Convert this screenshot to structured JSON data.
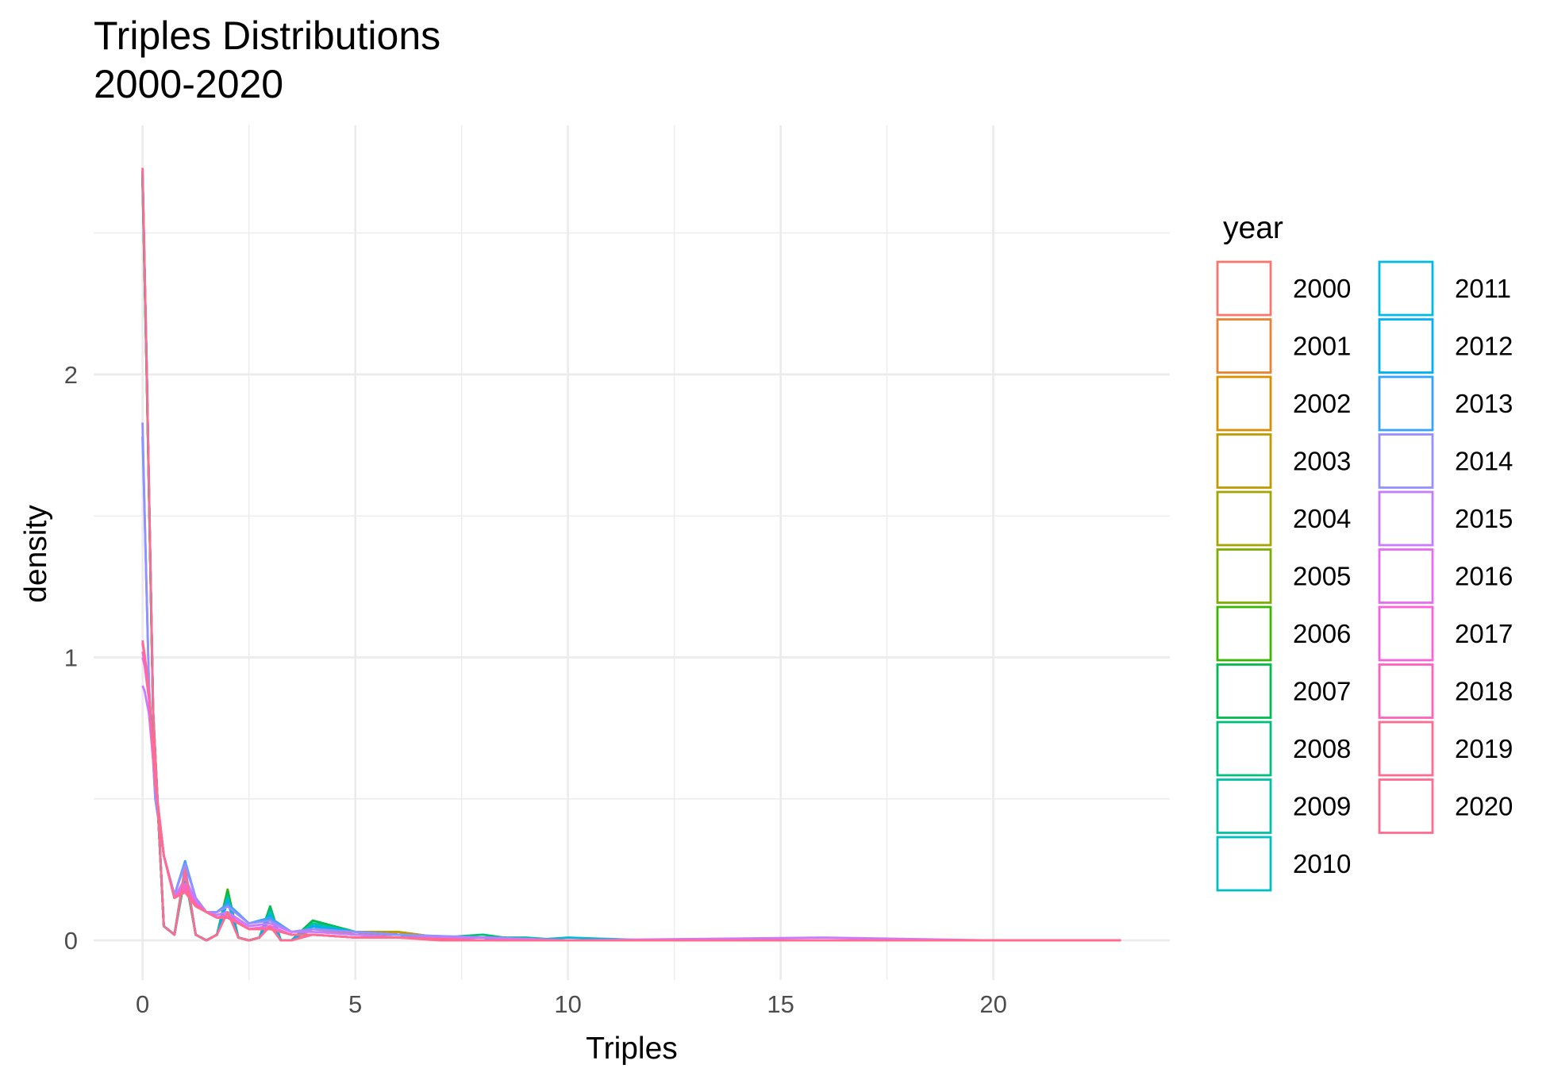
{
  "chart_data": {
    "type": "line",
    "subtype": "density",
    "title": "Triples Distributions",
    "subtitle": "2000-2020",
    "xlabel": "Triples",
    "ylabel": "density",
    "xlim": [
      -1.15,
      24.15
    ],
    "ylim": [
      -0.14,
      2.88
    ],
    "x_ticks": [
      0,
      5,
      10,
      15,
      20
    ],
    "y_ticks": [
      0,
      1,
      2
    ],
    "grid": true,
    "legend_title": "year",
    "legend_position": "right",
    "series": [
      {
        "name": "2000",
        "color": "#F8766D",
        "x": [
          0,
          0.1,
          0.25,
          0.5,
          0.75,
          1,
          1.25,
          1.5,
          1.75,
          2,
          2.25,
          2.5,
          2.75,
          3,
          3.25,
          3.5,
          4,
          5,
          6,
          7,
          8,
          9,
          10,
          12,
          15,
          20,
          23
        ],
        "y": [
          2.7,
          2.0,
          0.8,
          0.05,
          0.02,
          0.24,
          0.02,
          0.0,
          0.02,
          0.14,
          0.01,
          0.0,
          0.01,
          0.08,
          0.0,
          0.0,
          0.04,
          0.02,
          0.02,
          0.01,
          0.01,
          0.0,
          0.0,
          0.0,
          0.0,
          0.0,
          0.0
        ]
      },
      {
        "name": "2001",
        "color": "#EA8331",
        "x": [
          0,
          0.1,
          0.25,
          0.5,
          0.75,
          1,
          1.25,
          1.5,
          1.75,
          2,
          2.25,
          2.5,
          2.75,
          3,
          3.25,
          3.5,
          4,
          5,
          6,
          7,
          8,
          9,
          10,
          12,
          15,
          20,
          23
        ],
        "y": [
          2.72,
          2.0,
          0.8,
          0.05,
          0.02,
          0.25,
          0.02,
          0.0,
          0.02,
          0.15,
          0.01,
          0.0,
          0.01,
          0.09,
          0.0,
          0.0,
          0.05,
          0.02,
          0.03,
          0.01,
          0.01,
          0.0,
          0.0,
          0.0,
          0.0,
          0.0,
          0.0
        ]
      },
      {
        "name": "2002",
        "color": "#D89000",
        "x": [
          0,
          0.1,
          0.25,
          0.5,
          0.75,
          1,
          1.25,
          1.5,
          1.75,
          2,
          2.25,
          2.5,
          2.75,
          3,
          3.25,
          3.5,
          4,
          5,
          6,
          7,
          8,
          9,
          10,
          12,
          15,
          20,
          23
        ],
        "y": [
          2.7,
          1.98,
          0.8,
          0.05,
          0.02,
          0.24,
          0.02,
          0.0,
          0.02,
          0.16,
          0.01,
          0.0,
          0.01,
          0.1,
          0.0,
          0.0,
          0.05,
          0.03,
          0.03,
          0.01,
          0.01,
          0.0,
          0.0,
          0.0,
          0.0,
          0.0,
          0.0
        ]
      },
      {
        "name": "2003",
        "color": "#C09B00",
        "x": [
          0,
          0.1,
          0.25,
          0.5,
          0.75,
          1,
          1.25,
          1.5,
          1.75,
          2,
          2.25,
          2.5,
          2.75,
          3,
          3.25,
          3.5,
          4,
          5,
          6,
          7,
          8,
          9,
          10,
          12,
          15,
          20,
          23
        ],
        "y": [
          2.71,
          1.99,
          0.8,
          0.05,
          0.02,
          0.25,
          0.02,
          0.0,
          0.02,
          0.15,
          0.01,
          0.0,
          0.01,
          0.09,
          0.0,
          0.0,
          0.05,
          0.03,
          0.03,
          0.01,
          0.01,
          0.0,
          0.0,
          0.0,
          0.0,
          0.0,
          0.0
        ]
      },
      {
        "name": "2004",
        "color": "#A3A500",
        "x": [
          0,
          0.1,
          0.25,
          0.5,
          0.75,
          1,
          1.25,
          1.5,
          1.75,
          2,
          2.25,
          2.5,
          2.75,
          3,
          3.25,
          3.5,
          4,
          5,
          6,
          7,
          8,
          9,
          10,
          12,
          15,
          20,
          23
        ],
        "y": [
          2.7,
          2.0,
          0.8,
          0.05,
          0.02,
          0.24,
          0.02,
          0.0,
          0.02,
          0.16,
          0.01,
          0.0,
          0.01,
          0.1,
          0.0,
          0.0,
          0.05,
          0.03,
          0.02,
          0.01,
          0.01,
          0.0,
          0.0,
          0.0,
          0.0,
          0.0,
          0.0
        ]
      },
      {
        "name": "2005",
        "color": "#7CAE00",
        "x": [
          0,
          0.1,
          0.25,
          0.5,
          0.75,
          1,
          1.25,
          1.5,
          1.75,
          2,
          2.25,
          2.5,
          2.75,
          3,
          3.25,
          3.5,
          4,
          5,
          6,
          7,
          8,
          9,
          10,
          12,
          15,
          20,
          23
        ],
        "y": [
          2.69,
          1.98,
          0.79,
          0.05,
          0.02,
          0.23,
          0.02,
          0.0,
          0.02,
          0.17,
          0.01,
          0.0,
          0.01,
          0.11,
          0.0,
          0.0,
          0.06,
          0.03,
          0.02,
          0.01,
          0.01,
          0.0,
          0.0,
          0.0,
          0.0,
          0.0,
          0.0
        ]
      },
      {
        "name": "2006",
        "color": "#39B600",
        "x": [
          0,
          0.1,
          0.25,
          0.5,
          0.75,
          1,
          1.25,
          1.5,
          1.75,
          2,
          2.25,
          2.5,
          2.75,
          3,
          3.25,
          3.5,
          4,
          5,
          6,
          7,
          8,
          9,
          10,
          12,
          15,
          20,
          23
        ],
        "y": [
          2.68,
          1.97,
          0.79,
          0.05,
          0.02,
          0.23,
          0.02,
          0.0,
          0.02,
          0.18,
          0.01,
          0.0,
          0.01,
          0.12,
          0.0,
          0.0,
          0.07,
          0.03,
          0.02,
          0.01,
          0.01,
          0.0,
          0.0,
          0.0,
          0.0,
          0.0,
          0.0
        ]
      },
      {
        "name": "2007",
        "color": "#00BB4E",
        "x": [
          0,
          0.1,
          0.25,
          0.5,
          0.75,
          1,
          1.25,
          1.5,
          1.75,
          2,
          2.25,
          2.5,
          2.75,
          3,
          3.25,
          3.5,
          4,
          5,
          6,
          7,
          8,
          9,
          10,
          12,
          15,
          20,
          23
        ],
        "y": [
          2.69,
          1.98,
          0.79,
          0.05,
          0.02,
          0.23,
          0.02,
          0.0,
          0.02,
          0.17,
          0.01,
          0.0,
          0.01,
          0.12,
          0.0,
          0.0,
          0.07,
          0.03,
          0.02,
          0.01,
          0.01,
          0.0,
          0.0,
          0.0,
          0.0,
          0.0,
          0.0
        ]
      },
      {
        "name": "2008",
        "color": "#00BF7D",
        "x": [
          0,
          0.1,
          0.25,
          0.5,
          0.75,
          1,
          1.25,
          1.5,
          1.75,
          2,
          2.25,
          2.5,
          2.75,
          3,
          3.25,
          3.5,
          4,
          5,
          6,
          7,
          8,
          9,
          10,
          12,
          15,
          20,
          23
        ],
        "y": [
          2.7,
          1.99,
          0.8,
          0.05,
          0.02,
          0.24,
          0.02,
          0.0,
          0.02,
          0.16,
          0.01,
          0.0,
          0.01,
          0.11,
          0.0,
          0.0,
          0.06,
          0.03,
          0.02,
          0.01,
          0.02,
          0.0,
          0.0,
          0.0,
          0.0,
          0.0,
          0.0
        ]
      },
      {
        "name": "2009",
        "color": "#00C1A3",
        "x": [
          0,
          0.1,
          0.25,
          0.5,
          0.75,
          1,
          1.25,
          1.5,
          1.75,
          2,
          2.25,
          2.5,
          2.75,
          3,
          3.25,
          3.5,
          4,
          5,
          6,
          7,
          8,
          9,
          10,
          12,
          15,
          20,
          23
        ],
        "y": [
          2.71,
          2.0,
          0.8,
          0.05,
          0.02,
          0.24,
          0.02,
          0.0,
          0.02,
          0.15,
          0.01,
          0.0,
          0.01,
          0.1,
          0.0,
          0.0,
          0.06,
          0.03,
          0.02,
          0.01,
          0.01,
          0.01,
          0.0,
          0.0,
          0.0,
          0.0,
          0.0
        ]
      },
      {
        "name": "2010",
        "color": "#00BFC4",
        "x": [
          0,
          0.1,
          0.25,
          0.5,
          0.75,
          1,
          1.25,
          1.5,
          1.75,
          2,
          2.25,
          2.5,
          2.75,
          3,
          3.25,
          3.5,
          4,
          5,
          6,
          7,
          8,
          9,
          10,
          12,
          15,
          20,
          23
        ],
        "y": [
          2.7,
          1.99,
          0.8,
          0.05,
          0.02,
          0.25,
          0.02,
          0.0,
          0.02,
          0.15,
          0.01,
          0.0,
          0.01,
          0.1,
          0.0,
          0.0,
          0.05,
          0.03,
          0.02,
          0.01,
          0.01,
          0.0,
          0.0,
          0.0,
          0.0,
          0.0,
          0.0
        ]
      },
      {
        "name": "2011",
        "color": "#00BAE0",
        "x": [
          0,
          0.1,
          0.25,
          0.5,
          0.75,
          1,
          1.25,
          1.5,
          1.75,
          2,
          2.25,
          2.5,
          2.75,
          3,
          3.25,
          3.5,
          4,
          5,
          6,
          7,
          8,
          9,
          10,
          12,
          15,
          20,
          23
        ],
        "y": [
          2.71,
          2.0,
          0.81,
          0.05,
          0.02,
          0.25,
          0.02,
          0.0,
          0.02,
          0.14,
          0.01,
          0.0,
          0.01,
          0.09,
          0.0,
          0.0,
          0.05,
          0.03,
          0.02,
          0.01,
          0.01,
          0.0,
          0.01,
          0.0,
          0.0,
          0.0,
          0.0
        ]
      },
      {
        "name": "2012",
        "color": "#00B0F6",
        "x": [
          0,
          0.1,
          0.25,
          0.5,
          0.75,
          1,
          1.25,
          1.5,
          1.75,
          2,
          2.25,
          2.5,
          2.75,
          3,
          3.25,
          3.5,
          4,
          5,
          6,
          7,
          8,
          9,
          10,
          12,
          15,
          20,
          23
        ],
        "y": [
          2.72,
          2.01,
          0.81,
          0.05,
          0.02,
          0.26,
          0.02,
          0.0,
          0.02,
          0.14,
          0.01,
          0.0,
          0.01,
          0.09,
          0.0,
          0.0,
          0.05,
          0.03,
          0.02,
          0.01,
          0.01,
          0.0,
          0.0,
          0.0,
          0.0,
          0.0,
          0.0
        ]
      },
      {
        "name": "2013",
        "color": "#35A2FF",
        "x": [
          0,
          0.05,
          0.15,
          0.3,
          0.5,
          0.75,
          1,
          1.25,
          1.5,
          1.75,
          2,
          2.5,
          3,
          3.5,
          4,
          5,
          6,
          8,
          10,
          16,
          20,
          23
        ],
        "y": [
          1.78,
          1.5,
          0.9,
          0.5,
          0.3,
          0.16,
          0.28,
          0.15,
          0.1,
          0.1,
          0.13,
          0.06,
          0.08,
          0.03,
          0.04,
          0.03,
          0.02,
          0.01,
          0.0,
          0.0,
          0.0,
          0.0
        ]
      },
      {
        "name": "2014",
        "color": "#9590FF",
        "x": [
          0,
          0.05,
          0.15,
          0.3,
          0.5,
          0.75,
          1,
          1.25,
          1.5,
          1.75,
          2,
          2.5,
          3,
          3.5,
          4,
          5,
          6,
          8,
          10,
          16,
          20,
          23
        ],
        "y": [
          1.83,
          1.5,
          0.9,
          0.5,
          0.3,
          0.16,
          0.27,
          0.15,
          0.1,
          0.1,
          0.12,
          0.06,
          0.07,
          0.03,
          0.04,
          0.03,
          0.02,
          0.01,
          0.0,
          0.0,
          0.0,
          0.0
        ]
      },
      {
        "name": "2015",
        "color": "#C77CFF",
        "x": [
          0,
          0.05,
          0.15,
          0.3,
          0.5,
          0.75,
          1,
          1.25,
          1.5,
          1.75,
          2,
          2.5,
          3,
          3.5,
          4,
          5,
          6,
          8,
          10,
          16,
          20,
          23
        ],
        "y": [
          0.9,
          0.88,
          0.8,
          0.55,
          0.3,
          0.15,
          0.22,
          0.14,
          0.1,
          0.09,
          0.1,
          0.05,
          0.06,
          0.03,
          0.03,
          0.02,
          0.01,
          0.01,
          0.0,
          0.01,
          0.0,
          0.0
        ]
      },
      {
        "name": "2016",
        "color": "#E76BF3",
        "x": [
          0,
          0.05,
          0.15,
          0.3,
          0.5,
          0.75,
          1,
          1.25,
          1.5,
          1.75,
          2,
          2.5,
          3,
          3.5,
          4,
          5,
          6,
          8,
          10,
          16,
          20,
          23
        ],
        "y": [
          1.0,
          0.97,
          0.85,
          0.55,
          0.3,
          0.15,
          0.2,
          0.13,
          0.1,
          0.08,
          0.09,
          0.04,
          0.05,
          0.02,
          0.02,
          0.01,
          0.01,
          0.0,
          0.0,
          0.0,
          0.0,
          0.0
        ]
      },
      {
        "name": "2017",
        "color": "#FA62DB",
        "x": [
          0,
          0.05,
          0.15,
          0.3,
          0.5,
          0.75,
          1,
          1.25,
          1.5,
          1.75,
          2,
          2.5,
          3,
          3.5,
          4,
          5,
          6,
          8,
          10,
          16,
          20,
          23
        ],
        "y": [
          1.02,
          0.98,
          0.86,
          0.56,
          0.3,
          0.15,
          0.19,
          0.13,
          0.1,
          0.08,
          0.09,
          0.04,
          0.04,
          0.02,
          0.02,
          0.01,
          0.01,
          0.0,
          0.0,
          0.0,
          0.0,
          0.0
        ]
      },
      {
        "name": "2018",
        "color": "#FF62BC",
        "x": [
          0,
          0.05,
          0.15,
          0.3,
          0.5,
          0.75,
          1,
          1.25,
          1.5,
          1.75,
          2,
          2.5,
          3,
          3.5,
          4,
          5,
          6,
          8,
          10,
          16,
          20,
          23
        ],
        "y": [
          1.05,
          1.0,
          0.87,
          0.56,
          0.3,
          0.15,
          0.18,
          0.13,
          0.1,
          0.08,
          0.08,
          0.04,
          0.04,
          0.02,
          0.02,
          0.01,
          0.01,
          0.0,
          0.0,
          0.0,
          0.0,
          0.0
        ]
      },
      {
        "name": "2019",
        "color": "#FF6C90",
        "x": [
          0,
          0.05,
          0.15,
          0.3,
          0.5,
          0.75,
          1,
          1.25,
          1.5,
          1.75,
          2,
          2.5,
          3,
          3.5,
          4,
          5,
          6,
          8,
          10,
          16,
          20,
          23
        ],
        "y": [
          1.06,
          1.01,
          0.88,
          0.56,
          0.3,
          0.15,
          0.17,
          0.12,
          0.1,
          0.08,
          0.08,
          0.04,
          0.04,
          0.02,
          0.02,
          0.01,
          0.01,
          0.0,
          0.0,
          0.0,
          0.0,
          0.0
        ]
      },
      {
        "name": "2020",
        "color": "#FF6C90",
        "x": [
          0,
          0.1,
          0.25,
          0.5,
          0.75,
          1,
          1.25,
          1.5,
          1.75,
          2,
          2.25,
          2.5,
          2.75,
          3,
          3.25,
          3.5,
          4,
          5,
          6,
          7,
          8,
          9,
          10,
          12,
          15,
          20,
          23
        ],
        "y": [
          2.73,
          2.01,
          0.81,
          0.05,
          0.02,
          0.25,
          0.02,
          0.0,
          0.02,
          0.1,
          0.01,
          0.0,
          0.01,
          0.05,
          0.0,
          0.0,
          0.02,
          0.01,
          0.01,
          0.0,
          0.0,
          0.0,
          0.0,
          0.0,
          0.0,
          0.0,
          0.0
        ]
      }
    ]
  }
}
